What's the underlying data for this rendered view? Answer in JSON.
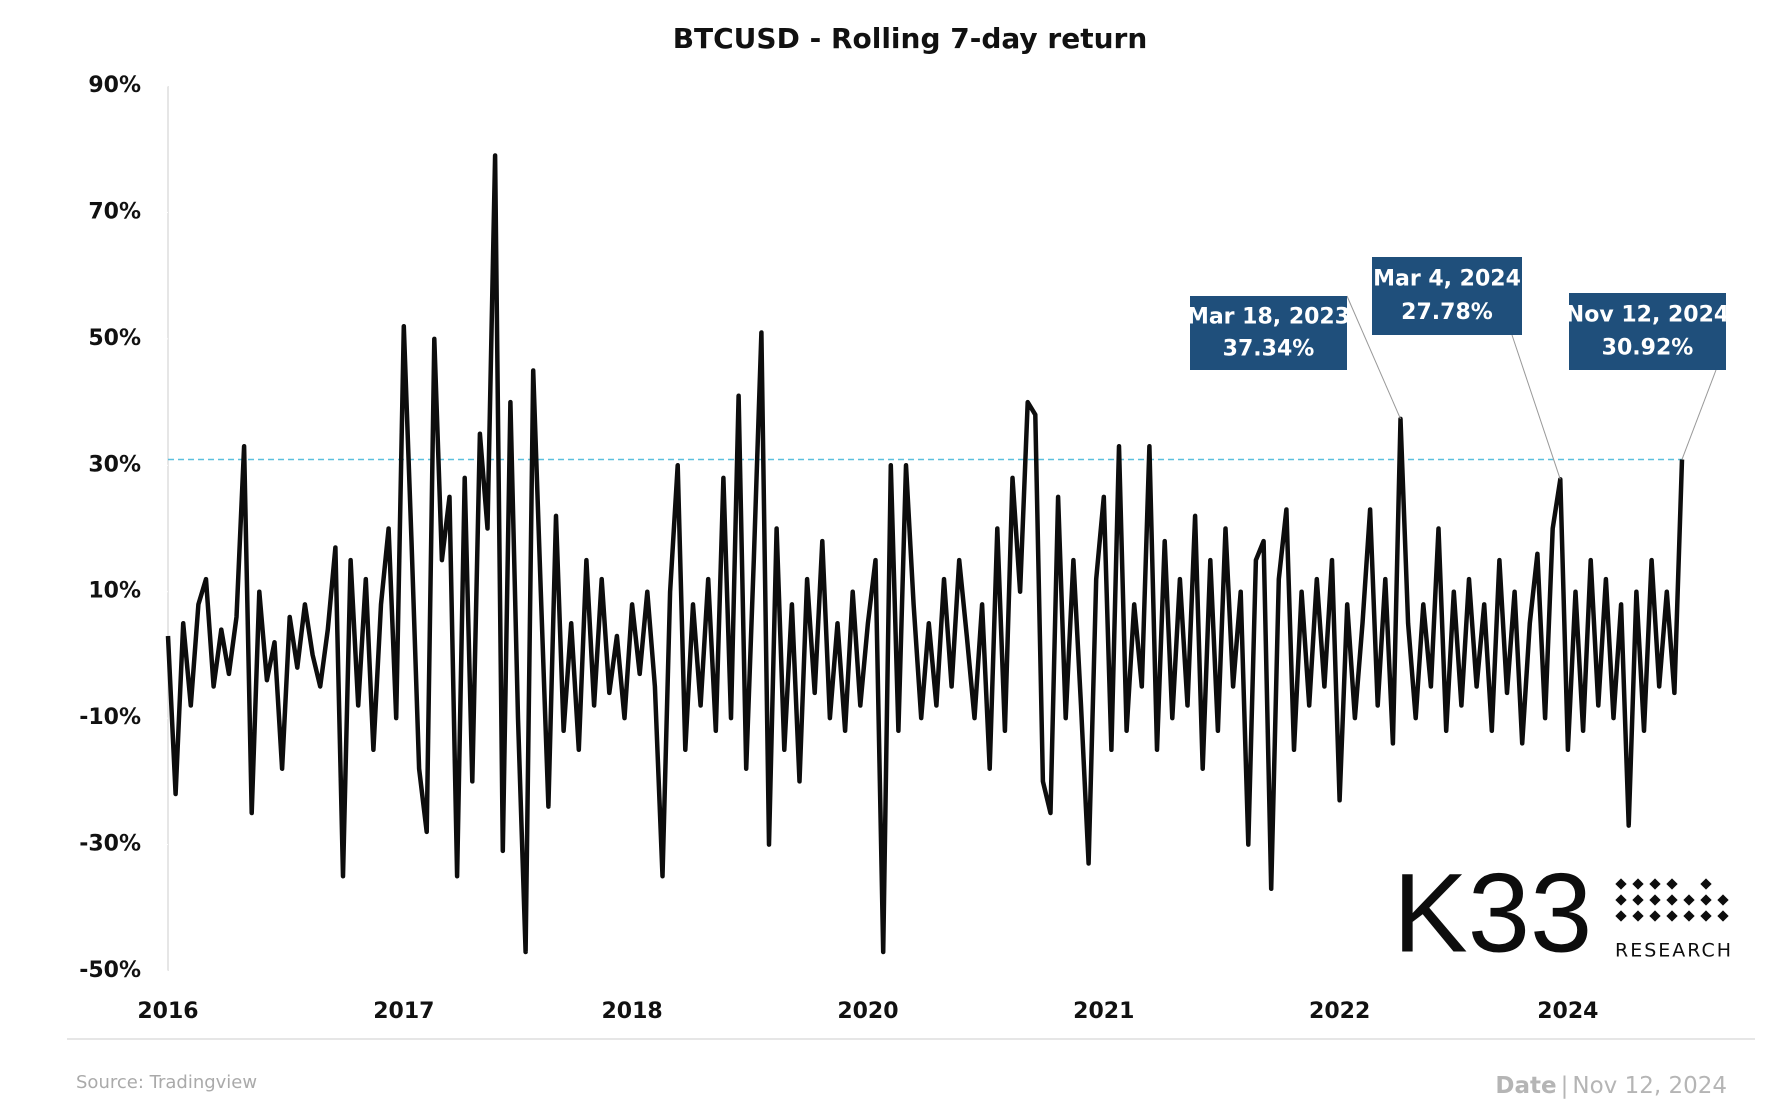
{
  "chart_data": {
    "type": "line",
    "title": "BTCUSD - Rolling 7-day return",
    "color": "#0d0d0d",
    "ylim": [
      -50,
      90
    ],
    "yticks": [
      {
        "value": -50,
        "label": "-50%"
      },
      {
        "value": -30,
        "label": "-30%"
      },
      {
        "value": -10,
        "label": "-10%"
      },
      {
        "value": 10,
        "label": "10%"
      },
      {
        "value": 30,
        "label": "30%"
      },
      {
        "value": 50,
        "label": "50%"
      },
      {
        "value": 70,
        "label": "70%"
      },
      {
        "value": 90,
        "label": "90%"
      }
    ],
    "categories": [
      "2016",
      null,
      null,
      null,
      null,
      null,
      null,
      null,
      null,
      null,
      null,
      null,
      null,
      null,
      null,
      null,
      null,
      null,
      null,
      null,
      null,
      null,
      null,
      null,
      null,
      null,
      null,
      null,
      null,
      null,
      null,
      "2017",
      null,
      null,
      null,
      null,
      null,
      null,
      null,
      null,
      null,
      null,
      null,
      null,
      null,
      null,
      null,
      null,
      null,
      null,
      null,
      null,
      null,
      null,
      null,
      null,
      null,
      null,
      null,
      null,
      null,
      "2018",
      null,
      null,
      null,
      null,
      null,
      null,
      null,
      null,
      null,
      null,
      null,
      null,
      null,
      null,
      null,
      null,
      null,
      null,
      null,
      null,
      null,
      null,
      null,
      null,
      null,
      null,
      null,
      null,
      null,
      null,
      "2020",
      null,
      null,
      null,
      null,
      null,
      null,
      null,
      null,
      null,
      null,
      null,
      null,
      null,
      null,
      null,
      null,
      null,
      null,
      null,
      null,
      null,
      null,
      null,
      null,
      null,
      null,
      null,
      null,
      null,
      null,
      "2021",
      null,
      null,
      null,
      null,
      null,
      null,
      null,
      null,
      null,
      null,
      null,
      null,
      null,
      null,
      null,
      null,
      null,
      null,
      null,
      null,
      null,
      null,
      null,
      null,
      null,
      null,
      null,
      null,
      null,
      null,
      "2022",
      null,
      null,
      null,
      null,
      null,
      null,
      null,
      null,
      null,
      null,
      null,
      null,
      null,
      null,
      null,
      null,
      null,
      null,
      null,
      null,
      null,
      null,
      null,
      null,
      null,
      null,
      null,
      null,
      null,
      "2024",
      null,
      null,
      null,
      null,
      null,
      null,
      null,
      null,
      null,
      null,
      null,
      null,
      null,
      null,
      null
    ],
    "values": [
      3,
      -22,
      5,
      -8,
      8,
      12,
      -5,
      4,
      -3,
      6,
      33,
      -25,
      10,
      -4,
      2,
      -18,
      6,
      -2,
      8,
      0,
      -5,
      4,
      17,
      -35,
      15,
      -8,
      12,
      -15,
      8,
      20,
      -10,
      52,
      18,
      -18,
      -28,
      50,
      15,
      25,
      -35,
      28,
      -20,
      35,
      20,
      79,
      -31,
      40,
      -10,
      -47,
      45,
      10,
      -24,
      22,
      -12,
      5,
      -15,
      15,
      -8,
      12,
      -6,
      3,
      -10,
      8,
      -3,
      10,
      -5,
      -35,
      10,
      30,
      -15,
      8,
      -8,
      12,
      -12,
      28,
      -10,
      41,
      -18,
      15,
      51,
      -30,
      20,
      -15,
      8,
      -20,
      12,
      -6,
      18,
      -10,
      5,
      -12,
      10,
      -8,
      5,
      15,
      -47,
      30,
      -12,
      30,
      8,
      -10,
      5,
      -8,
      12,
      -5,
      15,
      3,
      -10,
      8,
      -18,
      20,
      -12,
      28,
      10,
      40,
      38,
      -20,
      -25,
      25,
      -10,
      15,
      -8,
      -33,
      12,
      25,
      -15,
      33,
      -12,
      8,
      -5,
      33,
      -15,
      18,
      -10,
      12,
      -8,
      22,
      -18,
      15,
      -12,
      20,
      -5,
      10,
      -30,
      15,
      18,
      -37,
      12,
      23,
      -15,
      10,
      -8,
      12,
      -5,
      15,
      -23,
      8,
      -10,
      5,
      23,
      -8,
      12,
      -14,
      37.34,
      5,
      -10,
      8,
      -5,
      20,
      -12,
      10,
      -8,
      12,
      -5,
      8,
      -12,
      15,
      -6,
      10,
      -14,
      5,
      16,
      -10,
      20,
      27.78,
      -15,
      10,
      -12,
      15,
      -8,
      12,
      -10,
      8,
      -27,
      10,
      -12,
      15,
      -5,
      10,
      -6,
      30.92
    ],
    "annotations": [
      {
        "date": "Mar 18, 2023",
        "value": 37.34,
        "label": "37.34%"
      },
      {
        "date": "Mar 4, 2024",
        "value": 27.78,
        "label": "27.78%"
      },
      {
        "date": "Nov 12, 2024",
        "value": 30.92,
        "label": "30.92%"
      }
    ]
  },
  "logo": {
    "name": "K33",
    "tagline": "RESEARCH"
  },
  "footer": {
    "source": "Source:  Tradingview",
    "date_label": "Date",
    "separator": "|",
    "date": "Nov 12, 2024"
  }
}
